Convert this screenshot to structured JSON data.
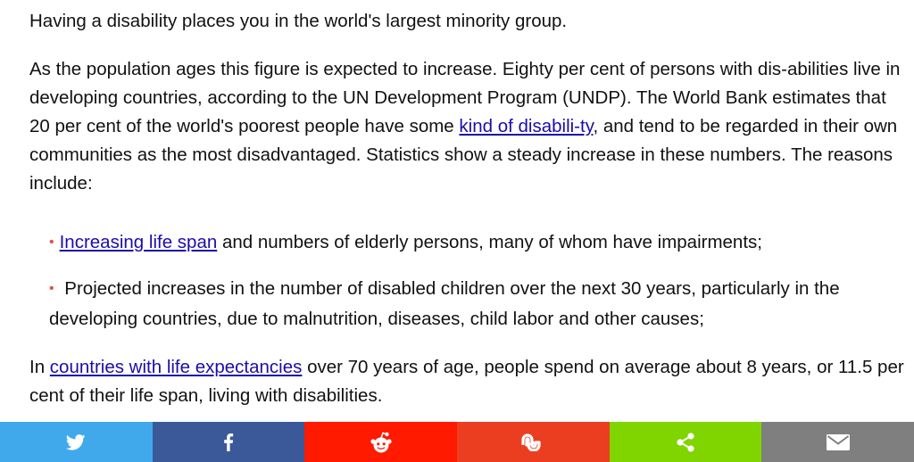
{
  "article": {
    "p1": "Having a disability places you in the world's largest minority group.",
    "p2": {
      "text_before": "As the population ages this figure is expected to increase. Eighty per cent of persons with dis-abilities live in developing countries, according to the UN Development Program (UNDP). The World Bank estimates that 20 per cent of the world's poorest people have some ",
      "link": "kind of disabili-ty",
      "text_after": ", and tend to be regarded in their own communities as the most disadvantaged. Statistics show a steady increase in these numbers. The reasons include:"
    },
    "reasons": [
      {
        "bullet": "•",
        "link": "Increasing life span",
        "text": " and numbers of elderly persons, many of whom have impairments;"
      },
      {
        "bullet": "•",
        "text": " Projected increases in the number of disabled children over the next 30 years, particularly in the developing countries, due to malnutrition, diseases, child labor and other causes;"
      }
    ],
    "p3": {
      "text_before": "In ",
      "link": "countries with life expectancies",
      "text_after": " over 70 years of age, people spend on average about 8 years, or 11.5 per cent of their life span, living with disabilities."
    }
  },
  "share_bar": {
    "buttons": [
      {
        "icon": "twitter-icon",
        "color": "#3fa9ec"
      },
      {
        "icon": "facebook-icon",
        "color": "#3b5998"
      },
      {
        "icon": "reddit-icon",
        "color": "#ff1a00"
      },
      {
        "icon": "stumbleupon-icon",
        "color": "#eb3e20"
      },
      {
        "icon": "share-icon",
        "color": "#80d400"
      },
      {
        "icon": "email-icon",
        "color": "#7f7f7f"
      }
    ]
  }
}
